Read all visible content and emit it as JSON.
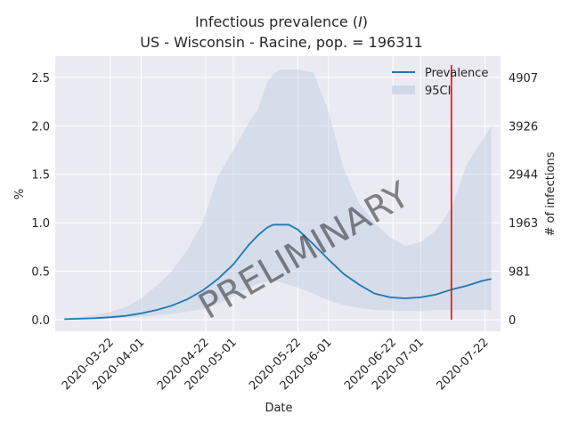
{
  "chart_data": {
    "type": "line",
    "title_line1_prefix": "Infectious prevalence (",
    "title_line1_var": "I",
    "title_line1_suffix": ")",
    "title_line2": "US - Wisconsin - Racine, pop. = 196311",
    "xlabel": "Date",
    "ylabel": "%",
    "ylabel_right": "# of infections",
    "watermark": "PRELIMINARY",
    "ylim": [
      -0.12,
      2.72
    ],
    "xlim": [
      "2020-03-04",
      "2020-07-27"
    ],
    "y_ticks": [
      "0.0",
      "0.5",
      "1.0",
      "1.5",
      "2.0",
      "2.5"
    ],
    "y_tick_values": [
      0,
      0.5,
      1.0,
      1.5,
      2.0,
      2.5
    ],
    "y_right_ticks": [
      "0",
      "981",
      "1963",
      "2944",
      "3926",
      "4907"
    ],
    "x_ticks": [
      "2020-03-22",
      "2020-04-01",
      "2020-04-22",
      "2020-05-01",
      "2020-05-22",
      "2020-06-01",
      "2020-06-22",
      "2020-07-01",
      "2020-07-22"
    ],
    "legend": {
      "placement": "top-right",
      "line_label": "Prevalence",
      "band_label": "95CI"
    },
    "marker_date": "2020-07-11",
    "colors": {
      "line": "#1f77b4",
      "band": "#b0c4de",
      "marker": "#ff0000",
      "axes_bg": "#eaeaf2",
      "grid": "#ffffff",
      "watermark": "#888888"
    },
    "series": [
      {
        "name": "Prevalence",
        "x": [
          "2020-03-07",
          "2020-03-12",
          "2020-03-17",
          "2020-03-22",
          "2020-03-27",
          "2020-04-01",
          "2020-04-06",
          "2020-04-11",
          "2020-04-16",
          "2020-04-21",
          "2020-04-26",
          "2020-05-01",
          "2020-05-06",
          "2020-05-09",
          "2020-05-12",
          "2020-05-14",
          "2020-05-16",
          "2020-05-19",
          "2020-05-22",
          "2020-05-27",
          "2020-06-01",
          "2020-06-06",
          "2020-06-11",
          "2020-06-16",
          "2020-06-21",
          "2020-06-26",
          "2020-07-01",
          "2020-07-06",
          "2020-07-11",
          "2020-07-16",
          "2020-07-21",
          "2020-07-24"
        ],
        "values": [
          0.005,
          0.01,
          0.015,
          0.025,
          0.04,
          0.065,
          0.1,
          0.145,
          0.21,
          0.3,
          0.42,
          0.57,
          0.77,
          0.87,
          0.95,
          0.98,
          0.98,
          0.98,
          0.93,
          0.78,
          0.62,
          0.47,
          0.36,
          0.27,
          0.23,
          0.22,
          0.23,
          0.26,
          0.31,
          0.35,
          0.4,
          0.42
        ]
      }
    ],
    "ci_lower": [
      0.002,
      0.004,
      0.008,
      0.013,
      0.02,
      0.03,
      0.045,
      0.06,
      0.08,
      0.11,
      0.16,
      0.24,
      0.33,
      0.37,
      0.39,
      0.4,
      0.39,
      0.36,
      0.33,
      0.27,
      0.2,
      0.15,
      0.12,
      0.1,
      0.095,
      0.09,
      0.09,
      0.1,
      0.1,
      0.1,
      0.1,
      0.1
    ],
    "ci_upper": [
      0.01,
      0.03,
      0.05,
      0.08,
      0.13,
      0.22,
      0.35,
      0.5,
      0.72,
      1.0,
      1.48,
      1.75,
      2.03,
      2.17,
      2.45,
      2.53,
      2.58,
      2.58,
      2.58,
      2.55,
      2.15,
      1.55,
      1.2,
      1.0,
      0.85,
      0.76,
      0.8,
      0.92,
      1.15,
      1.6,
      1.85,
      2.0
    ]
  }
}
